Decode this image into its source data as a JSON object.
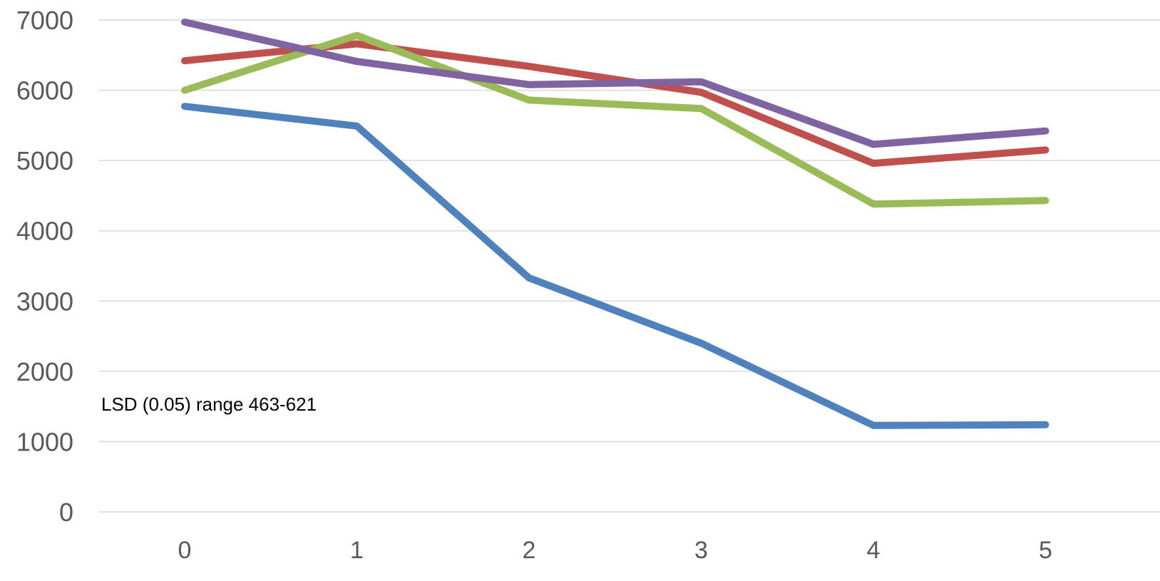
{
  "chart_data": {
    "type": "line",
    "title": "",
    "xlabel": "",
    "ylabel": "",
    "x": [
      0,
      1,
      2,
      3,
      4,
      5
    ],
    "x_tick_labels": [
      "0",
      "1",
      "2",
      "3",
      "4",
      "5"
    ],
    "y_tick_labels": [
      "0",
      "1000",
      "2000",
      "3000",
      "4000",
      "5000",
      "6000",
      "7000"
    ],
    "ylim": [
      0,
      7000
    ],
    "grid": true,
    "series": [
      {
        "values": [
          5770,
          5490,
          3330,
          2400,
          1230,
          1240
        ],
        "color": "#4f81bd"
      },
      {
        "values": [
          6420,
          6660,
          6340,
          5970,
          4960,
          5150
        ],
        "color": "#c0504d"
      },
      {
        "values": [
          6000,
          6780,
          5860,
          5740,
          4380,
          4430
        ],
        "color": "#9bbb59"
      },
      {
        "values": [
          6970,
          6410,
          6080,
          6120,
          5230,
          5420
        ],
        "color": "#8064a2"
      }
    ],
    "annotations": [
      {
        "text": "LSD (0.05) range 463-621"
      }
    ]
  }
}
